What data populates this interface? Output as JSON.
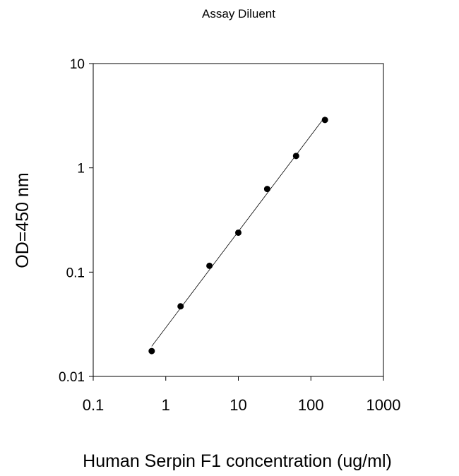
{
  "chart_data": {
    "type": "scatter",
    "title": "Assay Diluent",
    "xlabel": "Human Serpin F1 concentration (ug/ml)",
    "ylabel": "OD=450 nm",
    "xscale": "log",
    "yscale": "log",
    "xlim": [
      0.1,
      1000
    ],
    "ylim": [
      0.01,
      10
    ],
    "xticks": [
      "0.1",
      "1",
      "10",
      "100",
      "1000"
    ],
    "yticks": [
      "0.01",
      "0.1",
      "1",
      "10"
    ],
    "grid": false,
    "trendline": "linear fit on log-log",
    "x": [
      0.64,
      1.6,
      4,
      10,
      25,
      62.5,
      156.25
    ],
    "y": [
      0.0175,
      0.047,
      0.115,
      0.239,
      0.627,
      1.3,
      2.88
    ],
    "colors": {
      "marker": "#000000",
      "line": "#000000"
    }
  }
}
